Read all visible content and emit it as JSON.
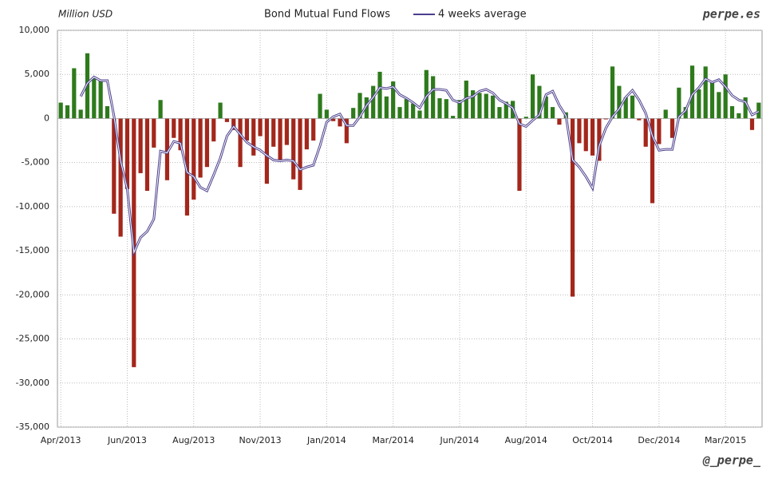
{
  "chart_data": {
    "type": "bar",
    "title": "Bond Mutual Fund Flows",
    "ylabel": "Million USD",
    "source": "perpe.es",
    "credit": "@_perpe_",
    "categories": [
      "Apr/2013",
      null,
      null,
      null,
      null,
      null,
      null,
      null,
      null,
      null,
      "Jun/2013",
      null,
      null,
      null,
      null,
      null,
      null,
      null,
      null,
      null,
      "Aug/2013",
      null,
      null,
      null,
      null,
      null,
      null,
      null,
      null,
      null,
      "Nov/2013",
      null,
      null,
      null,
      null,
      null,
      null,
      null,
      null,
      null,
      "Jan/2014",
      null,
      null,
      null,
      null,
      null,
      null,
      null,
      null,
      null,
      "Mar/2014",
      null,
      null,
      null,
      null,
      null,
      null,
      null,
      null,
      null,
      "Jun/2014",
      null,
      null,
      null,
      null,
      null,
      null,
      null,
      null,
      null,
      "Aug/2014",
      null,
      null,
      null,
      null,
      null,
      null,
      null,
      null,
      null,
      "Oct/2014",
      null,
      null,
      null,
      null,
      null,
      null,
      null,
      null,
      null,
      "Dec/2014",
      null,
      null,
      null,
      null,
      null,
      null,
      null,
      null,
      null,
      "Mar/2015",
      null,
      null,
      null,
      null,
      null
    ],
    "series": [
      {
        "type": "bar",
        "positive_color": "#2e7a1c",
        "negative_color": "#a3271c",
        "values": [
          1800,
          1500,
          5700,
          1000,
          7400,
          4600,
          4300,
          1400,
          -10800,
          -13400,
          -8000,
          -28200,
          -6200,
          -8200,
          -3300,
          2100,
          -7000,
          -2200,
          -3600,
          -11000,
          -9200,
          -6700,
          -5500,
          -2600,
          1800,
          -400,
          -1300,
          -5500,
          -2500,
          -4200,
          -2000,
          -7400,
          -3200,
          -4800,
          -3000,
          -6900,
          -8100,
          -3500,
          -2500,
          2800,
          1000,
          -300,
          -900,
          -2800,
          1200,
          2900,
          2400,
          3700,
          5300,
          2500,
          4200,
          1300,
          2200,
          1700,
          900,
          5500,
          4800,
          2300,
          2200,
          300,
          2100,
          4300,
          3200,
          2900,
          2800,
          2600,
          1300,
          1900,
          2000,
          -8200,
          200,
          5000,
          3700,
          2500,
          1300,
          -700,
          700,
          -20200,
          -2800,
          -3700,
          -4200,
          -4800,
          -100,
          5900,
          3700,
          2400,
          2600,
          -200,
          -3200,
          -9600,
          -2900,
          1000,
          -2200,
          3500,
          1300,
          6000,
          3300,
          5900,
          4200,
          3000,
          5000,
          1400,
          600,
          2400,
          -1300,
          1800
        ]
      },
      {
        "type": "line",
        "name": "4 weeks average",
        "color": "#4b3f8c",
        "values": [
          null,
          null,
          null,
          2500,
          4000,
          4700,
          4300,
          4300,
          300,
          -4800,
          -8000,
          -15200,
          -13500,
          -12800,
          -11400,
          -3700,
          -3900,
          -2600,
          -2800,
          -6100,
          -6600,
          -7800,
          -8200,
          -6400,
          -4500,
          -2000,
          -900,
          -1800,
          -2700,
          -3200,
          -3600,
          -4200,
          -4700,
          -4800,
          -4700,
          -4800,
          -5800,
          -5500,
          -5300,
          -3100,
          -400,
          200,
          500,
          -800,
          -800,
          200,
          1500,
          2400,
          3500,
          3400,
          3600,
          2700,
          2300,
          1800,
          1200,
          2500,
          3300,
          3300,
          3200,
          2100,
          1800,
          2300,
          2500,
          3100,
          3300,
          2900,
          2100,
          1700,
          1200,
          -600,
          -900,
          -200,
          400,
          2700,
          3100,
          1500,
          300,
          -4700,
          -5500,
          -6600,
          -7900,
          -3100,
          -1100,
          200,
          1100,
          2400,
          3200,
          2100,
          600,
          -2000,
          -3600,
          -3500,
          -3500,
          200,
          900,
          2700,
          3500,
          4500,
          4100,
          4400,
          3600,
          2600,
          2100,
          1900,
          400,
          800
        ]
      }
    ],
    "ylim": [
      -35000,
      10000
    ],
    "yticks": [
      {
        "value": 10000,
        "label": "10,000"
      },
      {
        "value": 5000,
        "label": "5,000"
      },
      0,
      {
        "value": -5000,
        "label": "-5,000"
      },
      {
        "value": -10000,
        "label": "-10,000"
      },
      {
        "value": -15000,
        "label": "-15,000"
      },
      {
        "value": -20000,
        "label": "-20,000"
      },
      {
        "value": -25000,
        "label": "-25,000"
      },
      {
        "value": -30000,
        "label": "-30,000"
      },
      {
        "value": -35000,
        "label": "-35,000"
      }
    ],
    "grid": true
  }
}
